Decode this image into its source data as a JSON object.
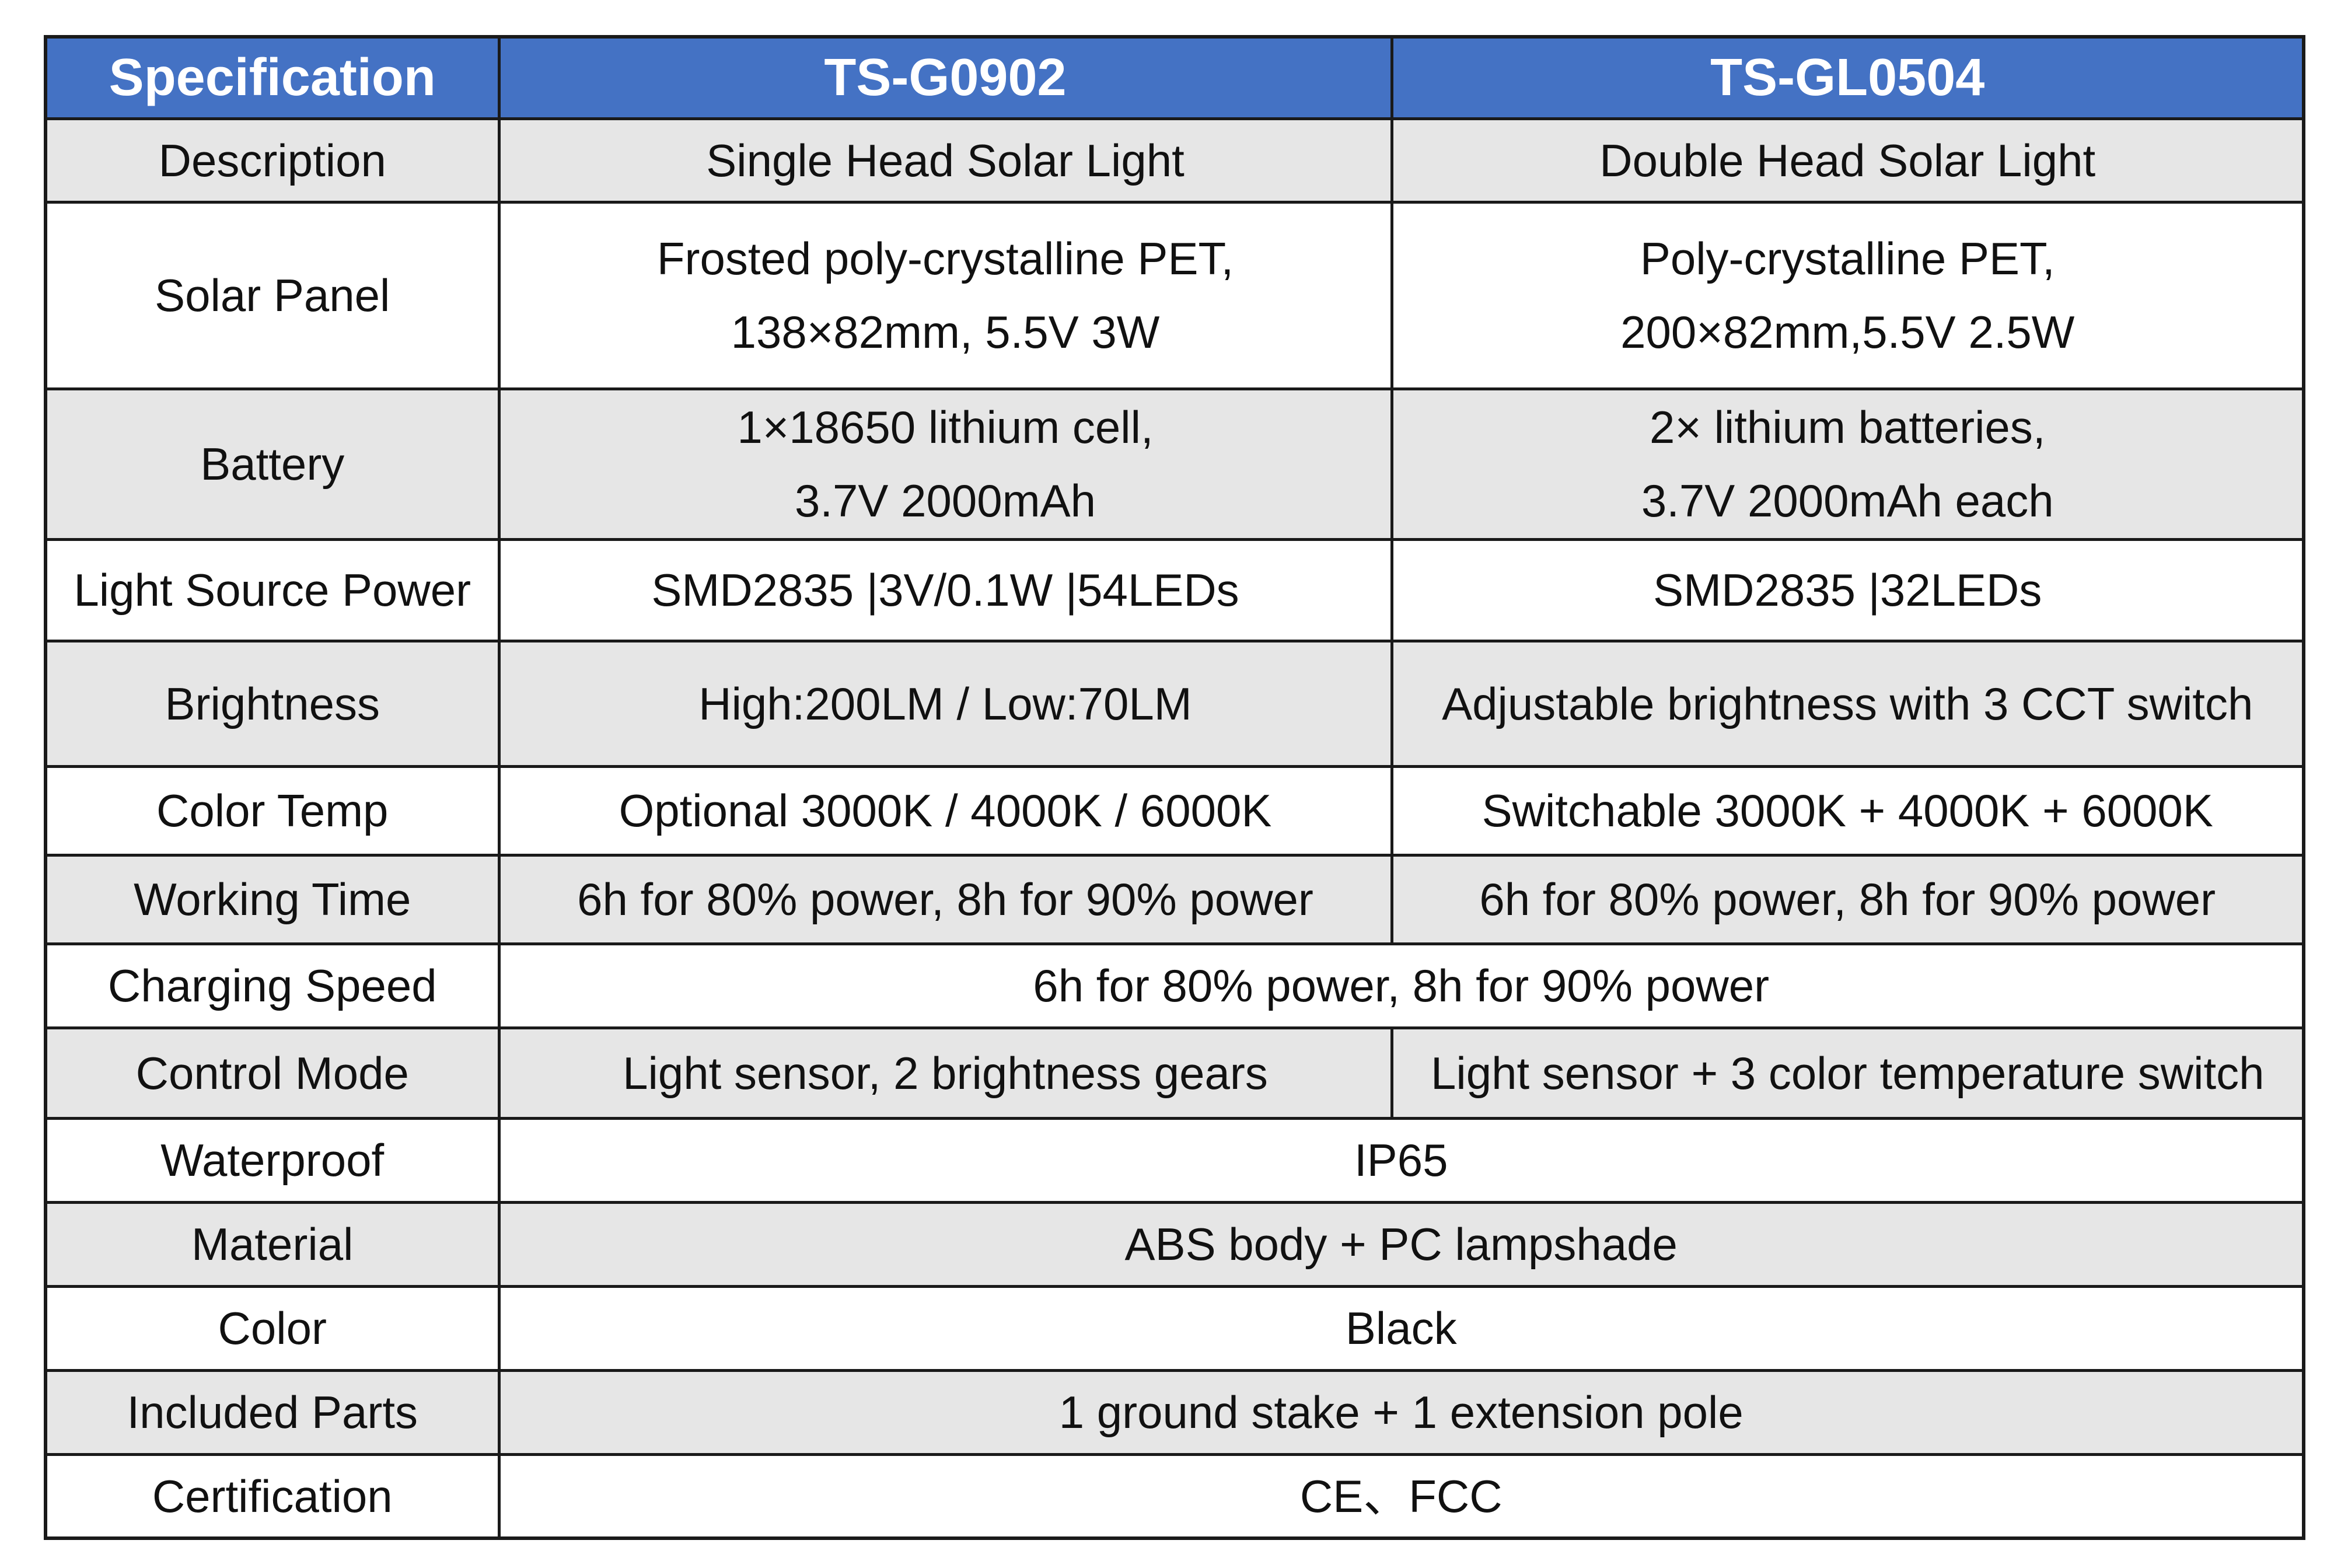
{
  "table": {
    "headers": [
      "Specification",
      "TS-G0902",
      "TS-GL0504"
    ],
    "rows": [
      {
        "label": "Description",
        "ts_g0902": [
          "Single Head Solar Light"
        ],
        "ts_gl0504": [
          "Double Head Solar Light"
        ]
      },
      {
        "label": "Solar Panel",
        "ts_g0902": [
          "Frosted poly-crystalline PET,",
          "138×82mm, 5.5V 3W"
        ],
        "ts_gl0504": [
          "Poly-crystalline PET,",
          "200×82mm,5.5V 2.5W"
        ]
      },
      {
        "label": "Battery",
        "ts_g0902": [
          "1×18650 lithium cell,",
          "3.7V 2000mAh"
        ],
        "ts_gl0504": [
          "2× lithium batteries,",
          "3.7V 2000mAh each"
        ]
      },
      {
        "label": "Light Source Power",
        "ts_g0902": [
          "SMD2835 |3V/0.1W |54LEDs"
        ],
        "ts_gl0504": [
          "SMD2835 |32LEDs"
        ]
      },
      {
        "label": "Brightness",
        "ts_g0902": [
          "High:200LM / Low:70LM"
        ],
        "ts_gl0504": [
          "Adjustable brightness with 3 CCT switch"
        ]
      },
      {
        "label": "Color Temp",
        "ts_g0902": [
          "Optional 3000K / 4000K / 6000K"
        ],
        "ts_gl0504": [
          "Switchable 3000K + 4000K + 6000K"
        ]
      },
      {
        "label": "Working Time",
        "ts_g0902": [
          "6h for 80% power, 8h for 90% power"
        ],
        "ts_gl0504": [
          "6h for 80% power, 8h for 90% power"
        ]
      },
      {
        "label": "Charging Speed",
        "shared": [
          "6h for 80% power, 8h for 90% power"
        ]
      },
      {
        "label": "Control Mode",
        "ts_g0902": [
          "Light sensor, 2 brightness gears"
        ],
        "ts_gl0504": [
          "Light sensor + 3 color temperature switch"
        ]
      },
      {
        "label": "Waterproof",
        "shared": [
          "IP65"
        ]
      },
      {
        "label": "Material",
        "shared": [
          "ABS body + PC lampshade"
        ]
      },
      {
        "label": "Color",
        "shared": [
          "Black"
        ]
      },
      {
        "label": "Included Parts",
        "shared": [
          "1 ground stake + 1 extension pole"
        ]
      },
      {
        "label": "Certification",
        "shared": [
          "CE、FCC"
        ]
      }
    ]
  },
  "colors": {
    "header_bg": "#4472c4",
    "header_text": "#ffffff",
    "shaded_row_bg": "#e6e6e6",
    "plain_row_bg": "#ffffff",
    "border": "#1a1a1a"
  }
}
